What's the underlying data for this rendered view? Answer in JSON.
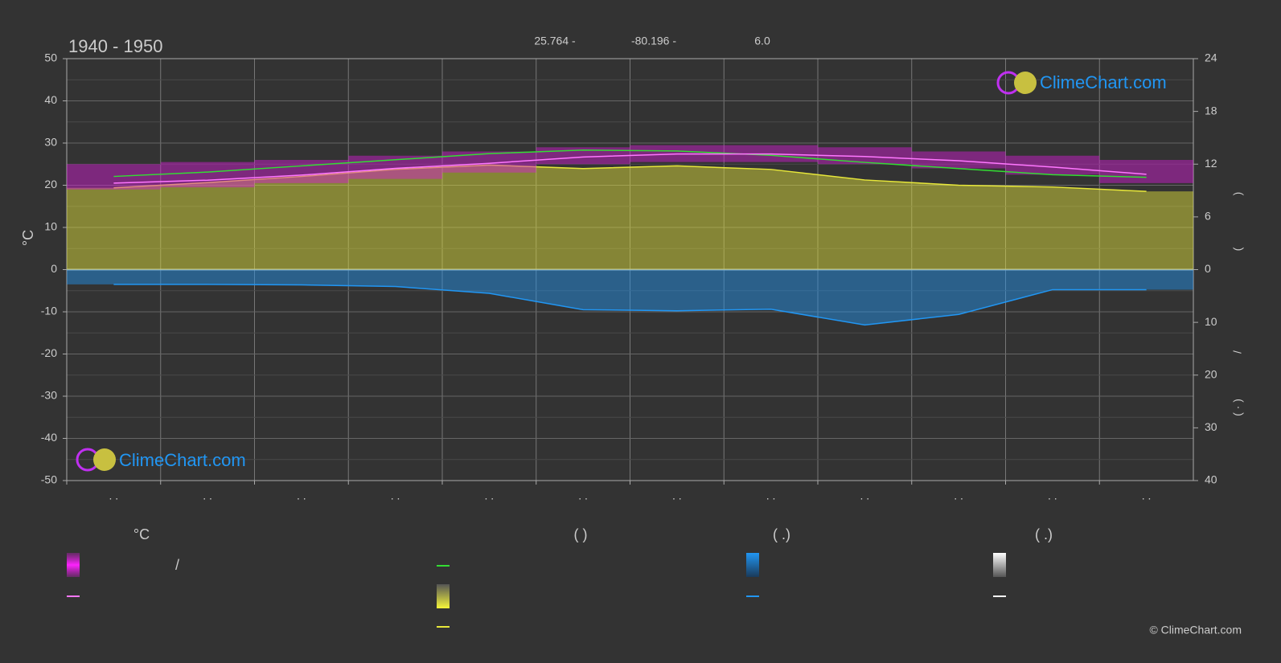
{
  "chart_data": {
    "type": "climate",
    "title": "1940 - 1950",
    "info": [
      "25.764 -",
      "-80.196 -",
      "6.0"
    ],
    "y_label": "°C",
    "y2_label_parts": [
      ")",
      "("
    ],
    "y3_label_parts": [
      "/",
      "(  ·  )"
    ],
    "categories": [
      ". .",
      ". .",
      ". .",
      ". .",
      ". .",
      ". .",
      ". .",
      ". .",
      ". .",
      ". .",
      ". .",
      ". ."
    ],
    "ylim": [
      -50,
      50
    ],
    "yticks": [
      50,
      40,
      30,
      20,
      10,
      0,
      -10,
      -20,
      -30,
      -40,
      -50
    ],
    "y2lim": [
      0,
      24
    ],
    "y2ticks": [
      24,
      18,
      12,
      6,
      0
    ],
    "y3lim": [
      0,
      40
    ],
    "y3ticks": [
      10,
      20,
      30,
      40
    ],
    "grid": true,
    "series": [
      {
        "kind": "band",
        "color": "#d81bd8",
        "values": [
          25,
          25.5,
          26,
          27,
          28,
          29,
          29.5,
          29.5,
          29,
          28,
          27,
          26
        ],
        "lows": [
          19,
          19.5,
          20.5,
          21.5,
          23,
          25,
          25.5,
          25.5,
          25,
          24,
          22.5,
          20.5
        ]
      },
      {
        "kind": "line",
        "color": "#ff77ff",
        "values": [
          20.5,
          21.2,
          22.4,
          24,
          25.2,
          26.7,
          27.4,
          27.4,
          26.8,
          25.8,
          24.3,
          22.6
        ]
      },
      {
        "kind": "line",
        "axis": "y2",
        "color": "#33dd33",
        "values": [
          10.6,
          11.1,
          11.8,
          12.5,
          13.2,
          13.6,
          13.5,
          13,
          12.2,
          11.5,
          10.8,
          10.5
        ]
      },
      {
        "kind": "area",
        "axis": "y2",
        "color": "#e8e83a",
        "values": [
          9.3,
          9.9,
          10.6,
          11.4,
          11.9,
          11.5,
          11.8,
          11.4,
          10.2,
          9.6,
          9.4,
          8.9
        ]
      },
      {
        "kind": "area",
        "axis": "y3",
        "color": "#2196f3",
        "values": [
          2.8,
          2.8,
          2.9,
          3.2,
          4.5,
          7.6,
          7.8,
          7.5,
          10.5,
          8.5,
          3.8,
          3.8
        ]
      }
    ],
    "legend_headers": [
      "°C",
      "(          )",
      "(   .)",
      "(   .)"
    ],
    "legend_note": "/",
    "brand": "ClimeChart.com",
    "copyright": "© ClimeChart.com"
  }
}
